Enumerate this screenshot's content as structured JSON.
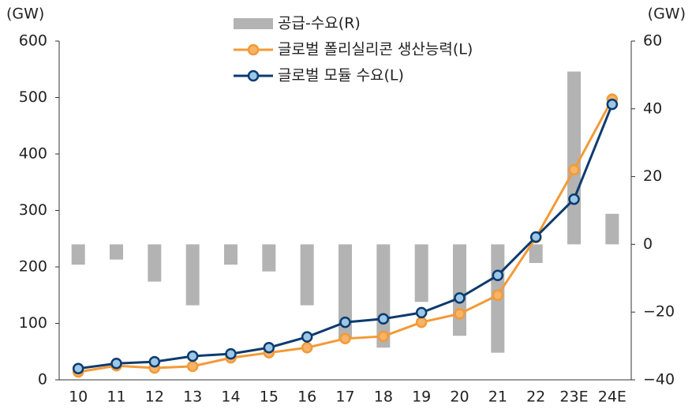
{
  "chart_data": {
    "type": "bar-line",
    "y_label": "(GW)",
    "y2_label": "(GW)",
    "categories": [
      "10",
      "11",
      "12",
      "13",
      "14",
      "15",
      "16",
      "17",
      "18",
      "19",
      "20",
      "21",
      "22",
      "23E",
      "24E"
    ],
    "series": [
      {
        "name": "공급-수요(R)",
        "type": "bar",
        "axis": "y2",
        "color": "#b3b3b3",
        "values": [
          -6,
          -4.5,
          -11,
          -18,
          -6,
          -8,
          -18,
          -28,
          -30.5,
          -17,
          -27,
          -32,
          -5.5,
          51,
          9
        ]
      },
      {
        "name": "글로벌 폴리실리콘 생산능력(L)",
        "type": "line",
        "color": "#f39a36",
        "marker_fill": "#f6b46a",
        "values": [
          14,
          25,
          21,
          24,
          39,
          48,
          57,
          73,
          77,
          102,
          117,
          150,
          252,
          372,
          497
        ]
      },
      {
        "name": "글로벌 모듈 수요(L)",
        "type": "line",
        "color": "#0d3b6e",
        "marker_fill": "#9cc8e8",
        "values": [
          20,
          29,
          32,
          42,
          46,
          57,
          76,
          102,
          108,
          119,
          145,
          185,
          253,
          320,
          488
        ]
      }
    ],
    "ylim": [
      0,
      600
    ],
    "yticks": [
      0,
      100,
      200,
      300,
      400,
      500,
      600
    ],
    "y2lim": [
      -40,
      60
    ],
    "y2ticks": [
      {
        "value": -40,
        "label": "−40"
      },
      {
        "value": -20,
        "label": "−20"
      },
      0,
      20,
      40,
      60
    ],
    "legend": "top"
  }
}
